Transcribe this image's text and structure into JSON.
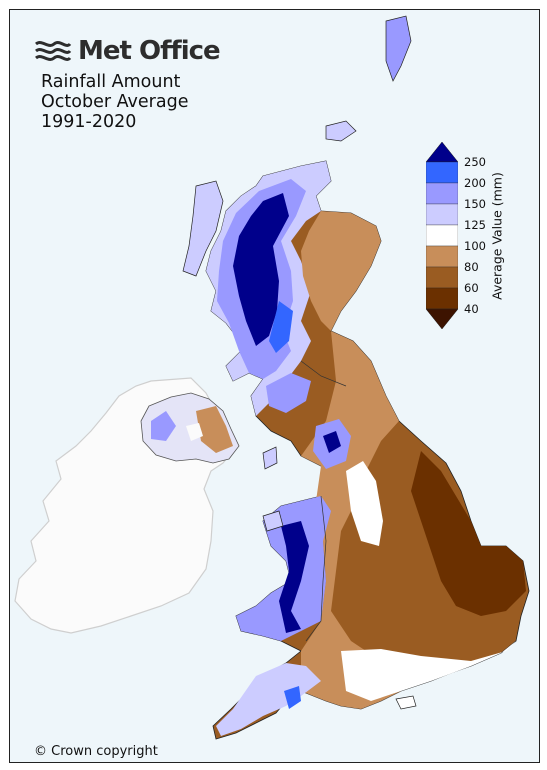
{
  "brand": {
    "name": "Met Office",
    "logo_icon": "met-office-wave-logo-icon"
  },
  "title": {
    "line1": "Rainfall Amount",
    "line2": "October Average",
    "line3": "1991-2020"
  },
  "copyright": "© Crown copyright",
  "colorbar": {
    "label": "Average Value (mm)",
    "ticks": [
      "250",
      "200",
      "150",
      "125",
      "100",
      "80",
      "60",
      "40"
    ],
    "bins": [
      {
        "range": "over 250",
        "color": "#00008b"
      },
      {
        "range": "200-250",
        "color": "#3366ff"
      },
      {
        "range": "150-200",
        "color": "#9999ff"
      },
      {
        "range": "125-150",
        "color": "#ccccff"
      },
      {
        "range": "100-125",
        "color": "#ffffff"
      },
      {
        "range": "80-100",
        "color": "#c88e5a"
      },
      {
        "range": "60-80",
        "color": "#9a5c22"
      },
      {
        "range": "40-60",
        "color": "#6b3000"
      },
      {
        "range": "under 40",
        "color": "#3d1300"
      }
    ]
  },
  "map": {
    "sea_color": "#eef6fa",
    "ireland_color": "#fbfbfb",
    "regions": [
      "Scotland",
      "Northern Ireland",
      "England",
      "Wales"
    ]
  }
}
